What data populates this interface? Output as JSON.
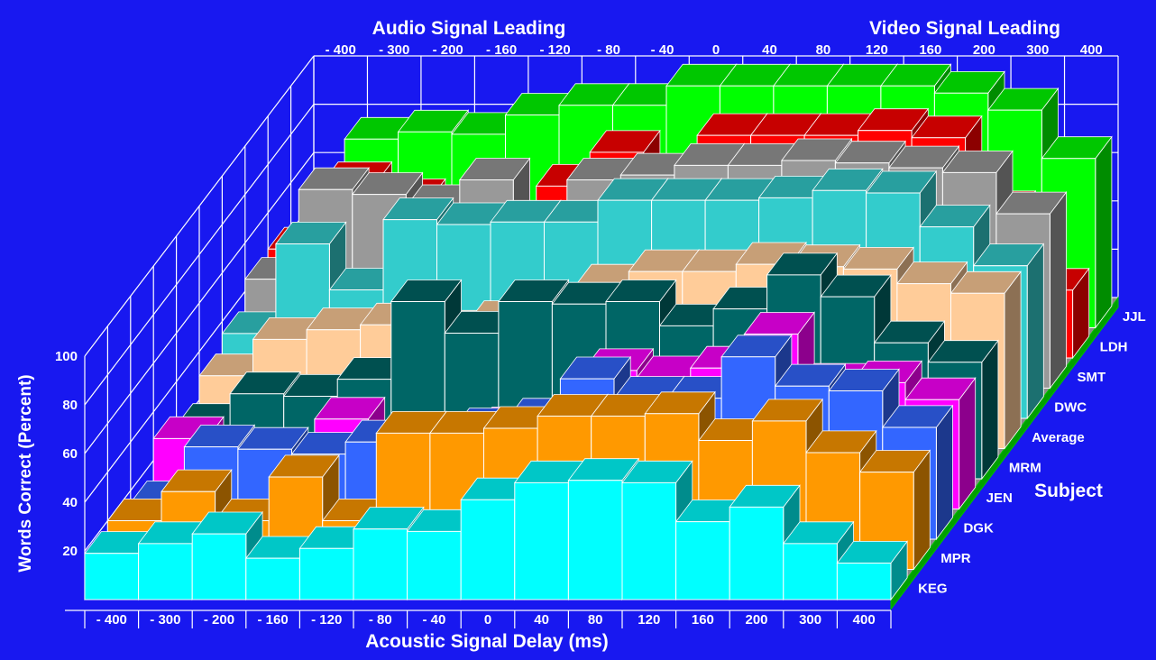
{
  "chart_data": {
    "type": "bar",
    "projection": "3d",
    "top_left_title": "Audio Signal Leading",
    "top_right_title": "Video Signal Leading",
    "xlabel": "Acoustic Signal Delay (ms)",
    "ylabel": "Words Correct (Percent)",
    "zlabel": "Subject",
    "categories": [
      "- 400",
      "- 300",
      "- 200",
      "- 160",
      "- 120",
      "- 80",
      "- 40",
      "0",
      "40",
      "80",
      "120",
      "160",
      "200",
      "300",
      "400"
    ],
    "y_ticks": [
      20,
      40,
      60,
      80,
      100
    ],
    "ylim": [
      0,
      100
    ],
    "grid": true,
    "series": [
      {
        "name": "KEG",
        "color": "#00ffff",
        "values": [
          19,
          23,
          27,
          17,
          21,
          29,
          28,
          41,
          48,
          49,
          48,
          32,
          38,
          23,
          15
        ]
      },
      {
        "name": "MPR",
        "color": "#ff9900",
        "values": [
          20,
          32,
          20,
          38,
          20,
          56,
          56,
          58,
          63,
          63,
          64,
          53,
          61,
          48,
          40
        ]
      },
      {
        "name": "DGK",
        "color": "#3366ff",
        "values": [
          15,
          38,
          37,
          35,
          40,
          37,
          45,
          49,
          66,
          58,
          58,
          75,
          63,
          61,
          46
        ]
      },
      {
        "name": "JEN",
        "color": "#ff00ff",
        "values": [
          29,
          20,
          16,
          37,
          27,
          31,
          33,
          33,
          57,
          54,
          58,
          72,
          51,
          52,
          45
        ]
      },
      {
        "name": "MRM",
        "color": "#006666",
        "values": [
          22,
          35,
          34,
          41,
          73,
          60,
          73,
          72,
          73,
          63,
          70,
          84,
          75,
          56,
          48
        ]
      },
      {
        "name": "Average",
        "color": "#ffcc99",
        "values": [
          30,
          45,
          49,
          51,
          48,
          52,
          55,
          67,
          73,
          73,
          76,
          75,
          74,
          68,
          64
        ]
      },
      {
        "name": "DWC",
        "color": "#33cccc",
        "values": [
          35,
          72,
          53,
          82,
          80,
          81,
          81,
          90,
          90,
          90,
          91,
          94,
          93,
          79,
          63
        ]
      },
      {
        "name": "SMT",
        "color": "#999999",
        "values": [
          45,
          82,
          80,
          75,
          86,
          68,
          86,
          88,
          92,
          92,
          94,
          93,
          91,
          89,
          72
        ]
      },
      {
        "name": "LDH",
        "color": "#ff0000",
        "values": [
          45,
          72,
          65,
          62,
          55,
          71,
          85,
          72,
          92,
          92,
          92,
          94,
          91,
          60,
          28
        ]
      },
      {
        "name": "JJL",
        "color": "#00ff00",
        "values": [
          32,
          78,
          81,
          80,
          88,
          92,
          92,
          100,
          100,
          100,
          100,
          100,
          97,
          90,
          70
        ]
      }
    ]
  }
}
